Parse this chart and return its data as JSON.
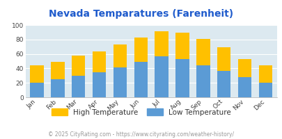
{
  "title": "Nevada Temparatures (Farenheit)",
  "months": [
    "Jan",
    "Feb",
    "Mar",
    "Apr",
    "May",
    "Jun",
    "Jul",
    "Aug",
    "Sep",
    "Oct",
    "Nov",
    "Dec"
  ],
  "low_temps": [
    20,
    25,
    30,
    35,
    41,
    49,
    57,
    53,
    44,
    37,
    28,
    20
  ],
  "high_temps": [
    44,
    49,
    58,
    63,
    73,
    83,
    91,
    89,
    81,
    69,
    53,
    44
  ],
  "low_color": "#5b9bd5",
  "high_color": "#ffc000",
  "plot_bg_color": "#dce9f0",
  "fig_bg_color": "#ffffff",
  "title_color": "#1f5bcc",
  "footer_color": "#999999",
  "ylim": [
    0,
    100
  ],
  "yticks": [
    0,
    20,
    40,
    60,
    80,
    100
  ],
  "legend_high": "High Temperature",
  "legend_low": "Low Temperature",
  "footer": "© 2025 CityRating.com - https://www.cityrating.com/weather-history/",
  "title_fontsize": 10,
  "tick_fontsize": 6.5,
  "legend_fontsize": 7.5,
  "footer_fontsize": 5.5,
  "bar_width": 0.65
}
